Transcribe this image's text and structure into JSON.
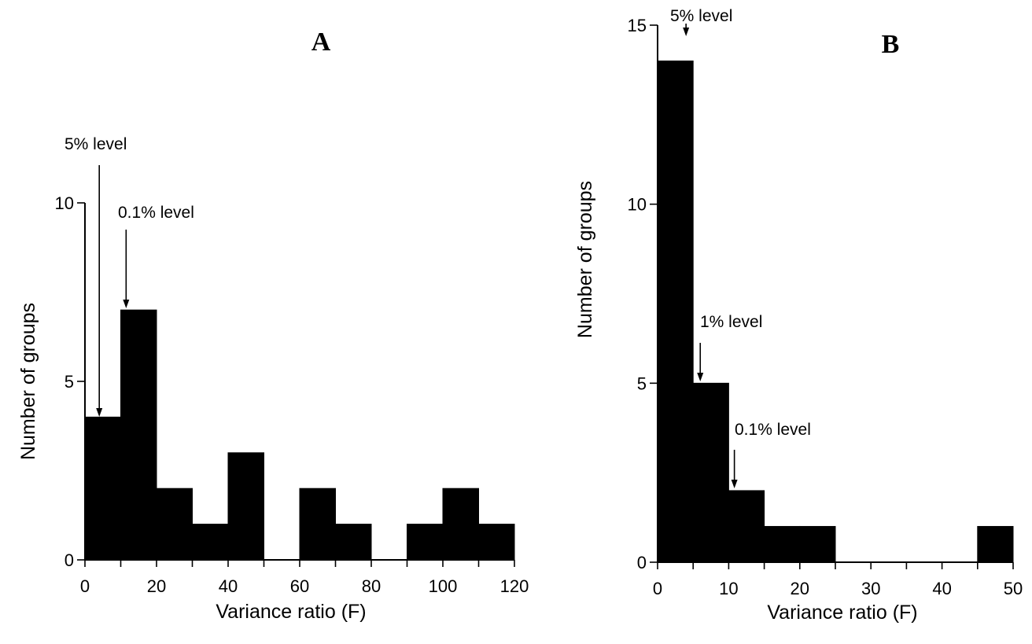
{
  "chart_data": [
    {
      "type": "bar",
      "panel": "A",
      "xlabel": "Variance ratio (F)",
      "ylabel": "Number of groups",
      "xlim": [
        0,
        120
      ],
      "ylim": [
        0,
        10
      ],
      "xticks": [
        0,
        20,
        40,
        60,
        80,
        100,
        120
      ],
      "yticks": [
        0,
        5,
        10
      ],
      "bin_width": 10,
      "bins": [
        {
          "x0": 0,
          "x1": 10,
          "value": 4
        },
        {
          "x0": 10,
          "x1": 20,
          "value": 7
        },
        {
          "x0": 20,
          "x1": 30,
          "value": 2
        },
        {
          "x0": 30,
          "x1": 40,
          "value": 1
        },
        {
          "x0": 40,
          "x1": 50,
          "value": 3
        },
        {
          "x0": 50,
          "x1": 60,
          "value": 0
        },
        {
          "x0": 60,
          "x1": 70,
          "value": 2
        },
        {
          "x0": 70,
          "x1": 80,
          "value": 1
        },
        {
          "x0": 80,
          "x1": 90,
          "value": 0
        },
        {
          "x0": 90,
          "x1": 100,
          "value": 1
        },
        {
          "x0": 100,
          "x1": 110,
          "value": 2
        },
        {
          "x0": 110,
          "x1": 120,
          "value": 1
        }
      ],
      "annotations": [
        {
          "text": "5% level",
          "x": 4
        },
        {
          "text": "0.1% level",
          "x": 11.5
        }
      ],
      "grid": false,
      "legend": "none"
    },
    {
      "type": "bar",
      "panel": "B",
      "xlabel": "Variance ratio (F)",
      "ylabel": "Number of groups",
      "xlim": [
        0,
        50
      ],
      "ylim": [
        0,
        15
      ],
      "xticks": [
        0,
        10,
        20,
        30,
        40,
        50
      ],
      "yticks": [
        0,
        5,
        10,
        15
      ],
      "bin_width": 5,
      "bins": [
        {
          "x0": 0,
          "x1": 5,
          "value": 14
        },
        {
          "x0": 5,
          "x1": 10,
          "value": 5
        },
        {
          "x0": 10,
          "x1": 15,
          "value": 2
        },
        {
          "x0": 15,
          "x1": 20,
          "value": 1
        },
        {
          "x0": 20,
          "x1": 25,
          "value": 1
        },
        {
          "x0": 25,
          "x1": 30,
          "value": 0
        },
        {
          "x0": 30,
          "x1": 35,
          "value": 0
        },
        {
          "x0": 35,
          "x1": 40,
          "value": 0
        },
        {
          "x0": 40,
          "x1": 45,
          "value": 0
        },
        {
          "x0": 45,
          "x1": 50,
          "value": 1
        }
      ],
      "annotations": [
        {
          "text": "5% level",
          "x": 4
        },
        {
          "text": "1% level",
          "x": 6
        },
        {
          "text": "0.1% level",
          "x": 10.8
        }
      ],
      "grid": false,
      "legend": "none"
    }
  ]
}
